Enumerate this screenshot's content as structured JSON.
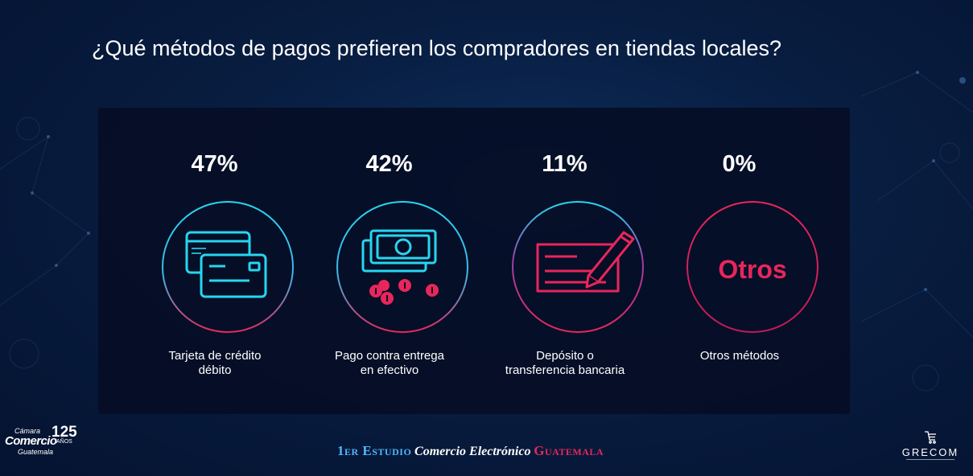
{
  "title": "¿Qué métodos de pagos prefieren los compradores en tiendas locales?",
  "colors": {
    "cyan": "#26d6f0",
    "pink": "#e8265b",
    "magenta": "#c2185b",
    "white": "#ffffff"
  },
  "stats": [
    {
      "percent": "47%",
      "label_line1": "Tarjeta de crédito",
      "label_line2": "débito",
      "icon": "credit-cards-icon"
    },
    {
      "percent": "42%",
      "label_line1": "Pago contra entrega",
      "label_line2": "en efectivo",
      "icon": "cash-coins-icon"
    },
    {
      "percent": "11%",
      "label_line1": "Depósito o",
      "label_line2": "transferencia bancaria",
      "icon": "check-pen-icon"
    },
    {
      "percent": "0%",
      "label_line1": "Otros métodos",
      "label_line2": "",
      "icon": "otros-icon",
      "icon_text": "Otros"
    }
  ],
  "footer": {
    "part1": "1er Estudio",
    "part2": "Comercio Electrónico",
    "part3": "Guatemala"
  },
  "logos": {
    "camara": {
      "line1": "Cámara",
      "line2": "Comercio",
      "line3": "Guatemala",
      "number": "125",
      "years": "AÑOS"
    },
    "grecom": {
      "name": "GRECOM"
    }
  }
}
